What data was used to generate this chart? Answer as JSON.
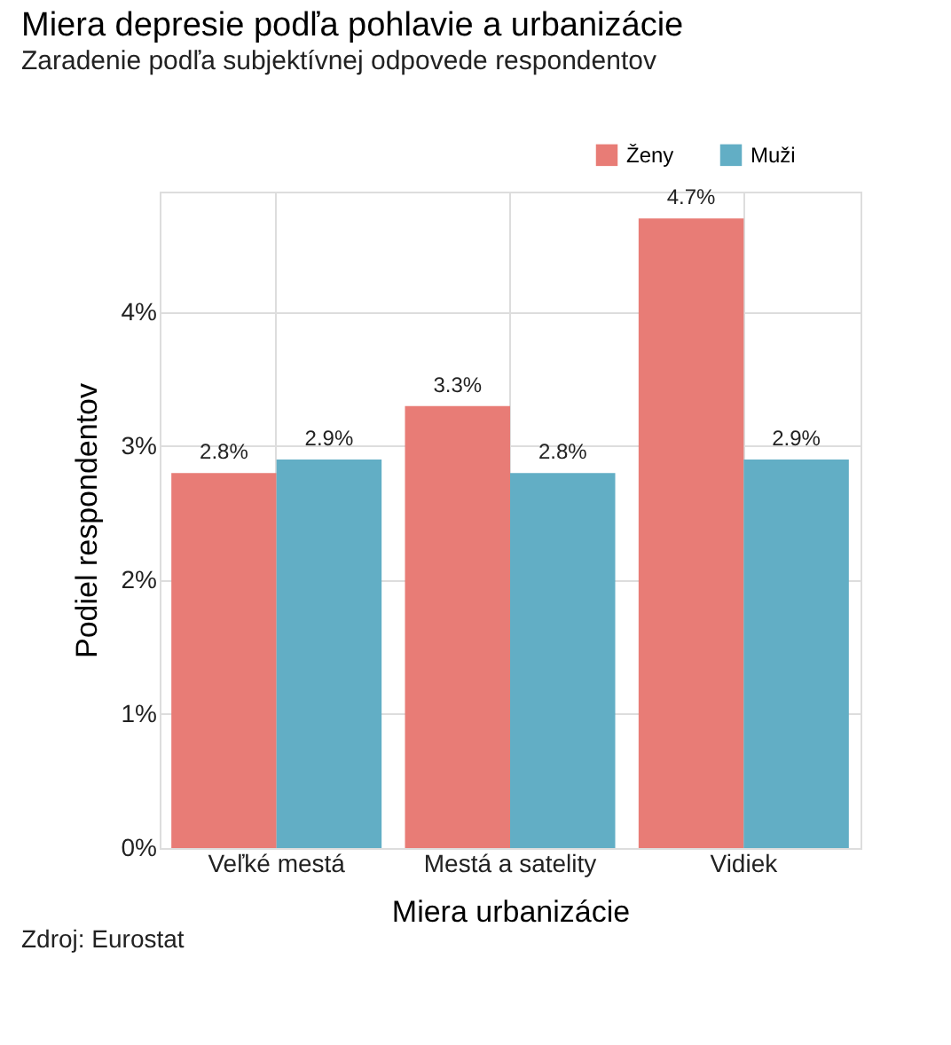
{
  "chart_data": {
    "type": "bar",
    "title": "Miera depresie podľa pohlavie a urbanizácie",
    "subtitle": "Zaradenie podľa subjektívnej odpovede respondentov",
    "xlabel": "Miera urbanizácie",
    "ylabel": "Podiel respondentov",
    "categories": [
      "Veľké mestá",
      "Mestá a satelity",
      "Vidiek"
    ],
    "series": [
      {
        "name": "Ženy",
        "color": "#e87c76",
        "values": [
          2.8,
          3.3,
          4.7
        ],
        "value_labels": [
          "2.8%",
          "3.3%",
          "4.7%"
        ]
      },
      {
        "name": "Muži",
        "color": "#62aec5",
        "values": [
          2.9,
          2.8,
          2.9
        ],
        "value_labels": [
          "2.9%",
          "2.8%",
          "2.9%"
        ]
      }
    ],
    "ylim": [
      0,
      4.9
    ],
    "yticks": [
      {
        "value": 0,
        "label": "0%"
      },
      {
        "value": 1,
        "label": "1%"
      },
      {
        "value": 2,
        "label": "2%"
      },
      {
        "value": 3,
        "label": "3%"
      },
      {
        "value": 4,
        "label": "4%"
      }
    ],
    "grid": true,
    "legend": "top right",
    "annotations": [
      "Zdroj: Eurostat"
    ]
  }
}
